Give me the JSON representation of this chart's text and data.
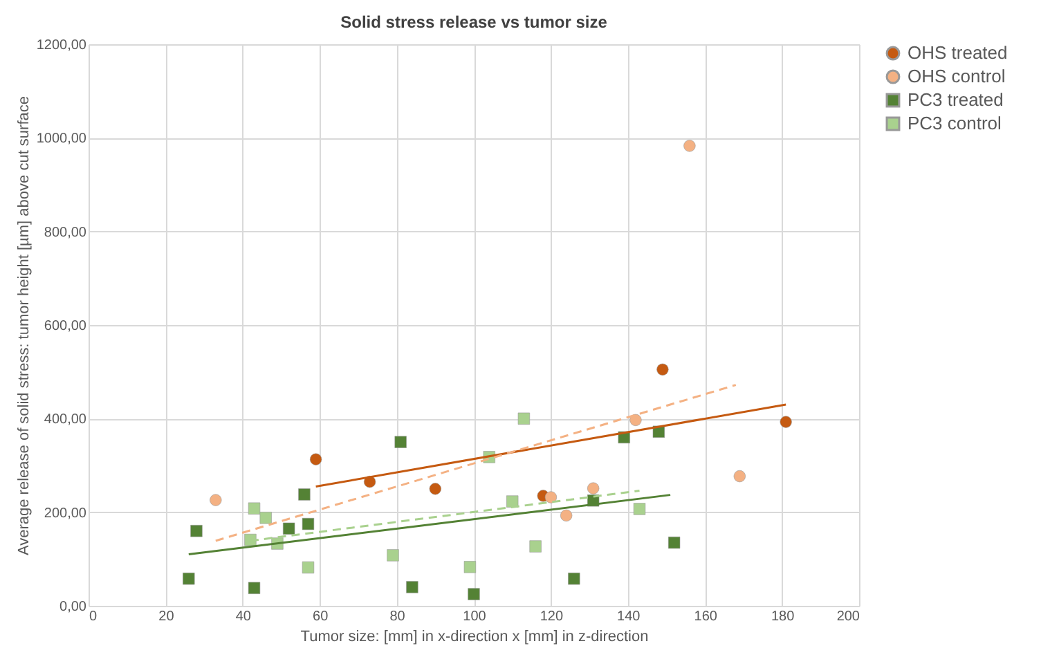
{
  "chart_data": {
    "type": "scatter",
    "title": "Solid stress release vs tumor size",
    "xlabel": "Tumor size: [mm] in x-direction x [mm] in z-direction",
    "ylabel": "Average release of solid stress: tumor height [µm] above cut surface",
    "xlim": [
      0,
      200
    ],
    "xticks": [
      0,
      20,
      40,
      60,
      80,
      100,
      120,
      140,
      160,
      180,
      200
    ],
    "ylim": [
      0,
      1200
    ],
    "yticks": [
      {
        "value": 0,
        "label": "0,00"
      },
      {
        "value": 200,
        "label": "200,00"
      },
      {
        "value": 400,
        "label": "400,00"
      },
      {
        "value": 600,
        "label": "600,00"
      },
      {
        "value": 800,
        "label": "800,00"
      },
      {
        "value": 1000,
        "label": "1000,00"
      },
      {
        "value": 1200,
        "label": "1200,00"
      }
    ],
    "grid": true,
    "legend": "right",
    "series": [
      {
        "name": "OHS treated",
        "color": "#c55a11",
        "marker": "circle",
        "x": [
          59,
          73,
          90,
          118,
          149,
          181
        ],
        "values": [
          313,
          265,
          250,
          235,
          505,
          393
        ]
      },
      {
        "name": "OHS control",
        "color": "#f4b183",
        "marker": "circle",
        "x": [
          33,
          120,
          124,
          131,
          142,
          156,
          169
        ],
        "values": [
          226,
          232,
          193,
          251,
          397,
          983,
          277
        ]
      },
      {
        "name": "PC3 treated",
        "color": "#548235",
        "marker": "square",
        "x": [
          26,
          28,
          43,
          52,
          56,
          57,
          81,
          84,
          100,
          126,
          131,
          139,
          148,
          152
        ],
        "values": [
          58,
          160,
          38,
          165,
          238,
          175,
          350,
          40,
          25,
          58,
          225,
          360,
          372,
          135
        ]
      },
      {
        "name": "PC3 control",
        "color": "#a9d18e",
        "marker": "square",
        "x": [
          42,
          43,
          46,
          49,
          57,
          79,
          99,
          104,
          110,
          113,
          116,
          143
        ],
        "values": [
          141,
          208,
          188,
          133,
          82,
          108,
          83,
          318,
          223,
          400,
          127,
          207
        ]
      },
      {
        "type": "line",
        "color": "#c55a11",
        "line_style": "solid",
        "x": [
          59,
          181
        ],
        "values": [
          255,
          430
        ]
      },
      {
        "type": "line",
        "color": "#f4b183",
        "line_style": "dashed",
        "x": [
          33,
          168
        ],
        "values": [
          139,
          472
        ]
      },
      {
        "type": "line",
        "color": "#548235",
        "line_style": "solid",
        "x": [
          26,
          151
        ],
        "values": [
          110,
          237
        ]
      },
      {
        "type": "line",
        "color": "#a9d18e",
        "line_style": "dashed",
        "x": [
          42,
          143
        ],
        "values": [
          139,
          246
        ]
      }
    ]
  }
}
